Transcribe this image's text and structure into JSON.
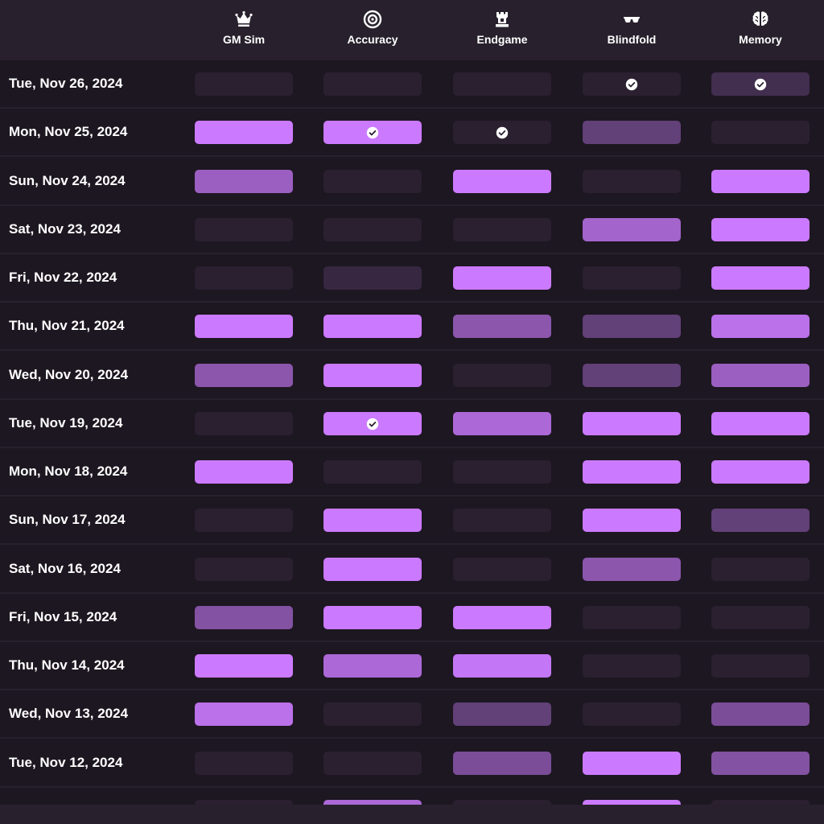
{
  "colors": {
    "background": "#1d1721",
    "header_bg": "#28212d",
    "cell_empty": "#2a2030",
    "accent": "#cb7aff",
    "accent_dark": "#5a3a6c"
  },
  "columns": [
    {
      "label": "GM Sim",
      "icon": "crown-icon"
    },
    {
      "label": "Accuracy",
      "icon": "target-icon"
    },
    {
      "label": "Endgame",
      "icon": "rook-icon"
    },
    {
      "label": "Blindfold",
      "icon": "sunglasses-icon"
    },
    {
      "label": "Memory",
      "icon": "brain-icon"
    }
  ],
  "rows": [
    {
      "date": "Tue, Nov 26, 2024",
      "levels": [
        0,
        0,
        0,
        0,
        0.15
      ],
      "checks": [
        false,
        false,
        false,
        true,
        true
      ]
    },
    {
      "date": "Mon, Nov 25, 2024",
      "levels": [
        1,
        1,
        0,
        0.35,
        0
      ],
      "checks": [
        false,
        true,
        true,
        false,
        false
      ]
    },
    {
      "date": "Sun, Nov 24, 2024",
      "levels": [
        0.7,
        0,
        1,
        0,
        1
      ],
      "checks": [
        false,
        false,
        false,
        false,
        false
      ]
    },
    {
      "date": "Sat, Nov 23, 2024",
      "levels": [
        0,
        0,
        0,
        0.75,
        1
      ],
      "checks": [
        false,
        false,
        false,
        false,
        false
      ]
    },
    {
      "date": "Fri, Nov 22, 2024",
      "levels": [
        0,
        0.08,
        1,
        0,
        1
      ],
      "checks": [
        false,
        false,
        false,
        false,
        false
      ]
    },
    {
      "date": "Thu, Nov 21, 2024",
      "levels": [
        1,
        1,
        0.6,
        0.35,
        0.9
      ],
      "checks": [
        false,
        false,
        false,
        false,
        false
      ]
    },
    {
      "date": "Wed, Nov 20, 2024",
      "levels": [
        0.6,
        1,
        0,
        0.35,
        0.7
      ],
      "checks": [
        false,
        false,
        false,
        false,
        false
      ]
    },
    {
      "date": "Tue, Nov 19, 2024",
      "levels": [
        0,
        1,
        0.8,
        1,
        1
      ],
      "checks": [
        false,
        true,
        false,
        false,
        false
      ]
    },
    {
      "date": "Mon, Nov 18, 2024",
      "levels": [
        1,
        0,
        0,
        1,
        1
      ],
      "checks": [
        false,
        false,
        false,
        false,
        false
      ]
    },
    {
      "date": "Sun, Nov 17, 2024",
      "levels": [
        0,
        1,
        0,
        1,
        0.35
      ],
      "checks": [
        false,
        false,
        false,
        false,
        false
      ]
    },
    {
      "date": "Sat, Nov 16, 2024",
      "levels": [
        0,
        1,
        0,
        0.6,
        0
      ],
      "checks": [
        false,
        false,
        false,
        false,
        false
      ]
    },
    {
      "date": "Fri, Nov 15, 2024",
      "levels": [
        0.55,
        1,
        1,
        0,
        0
      ],
      "checks": [
        false,
        false,
        false,
        false,
        false
      ]
    },
    {
      "date": "Thu, Nov 14, 2024",
      "levels": [
        1,
        0.8,
        0.95,
        0,
        0
      ],
      "checks": [
        false,
        false,
        false,
        false,
        false
      ]
    },
    {
      "date": "Wed, Nov 13, 2024",
      "levels": [
        0.9,
        0,
        0.35,
        0,
        0.5
      ],
      "checks": [
        false,
        false,
        false,
        false,
        false
      ]
    },
    {
      "date": "Tue, Nov 12, 2024",
      "levels": [
        0,
        0,
        0.5,
        1,
        0.55
      ],
      "checks": [
        false,
        false,
        false,
        false,
        false
      ]
    },
    {
      "date": "",
      "levels": [
        0,
        0.8,
        0,
        1,
        0
      ],
      "checks": [
        false,
        false,
        false,
        false,
        false
      ]
    }
  ]
}
